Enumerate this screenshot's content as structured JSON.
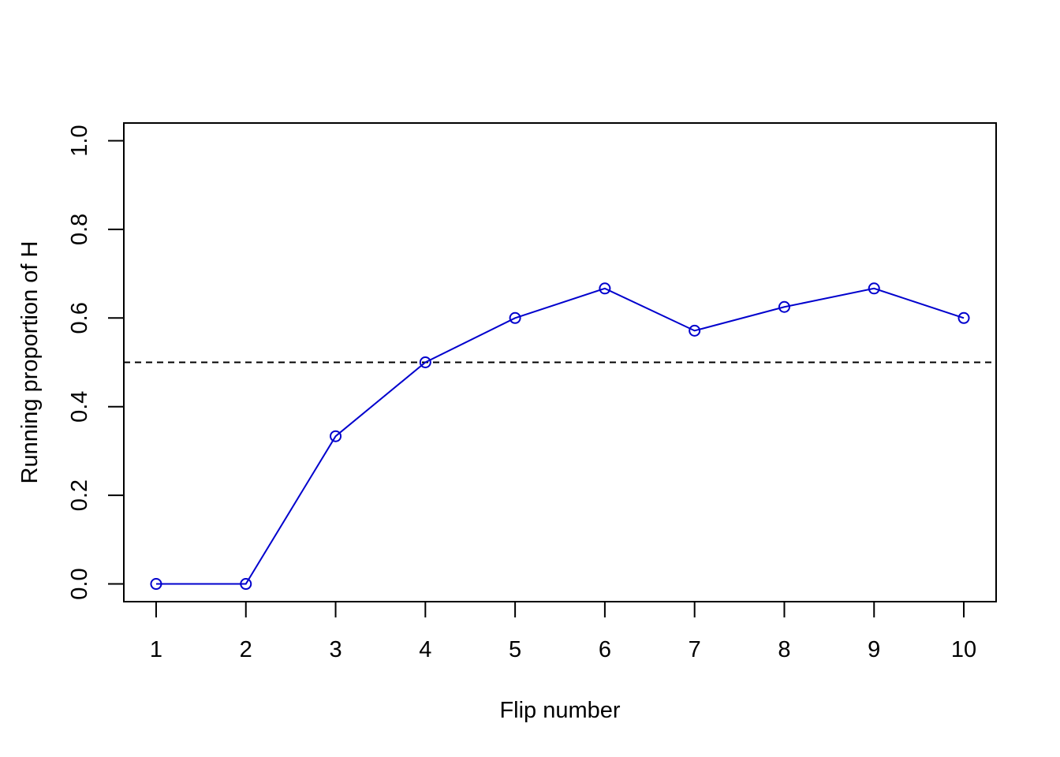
{
  "chart_data": {
    "type": "line",
    "title": "",
    "xlabel": "Flip number",
    "ylabel": "Running proportion of H",
    "x": [
      1,
      2,
      3,
      4,
      5,
      6,
      7,
      8,
      9,
      10
    ],
    "xticks": [
      "1",
      "2",
      "3",
      "4",
      "5",
      "6",
      "7",
      "8",
      "9",
      "10"
    ],
    "yticks": [
      "0.0",
      "0.2",
      "0.4",
      "0.6",
      "0.8",
      "1.0"
    ],
    "ytick_values": [
      0.0,
      0.2,
      0.4,
      0.6,
      0.8,
      1.0
    ],
    "xlim": [
      0.64,
      10.36
    ],
    "ylim": [
      -0.04,
      1.04
    ],
    "grid": false,
    "legend": "none",
    "series": [
      {
        "values": [
          0.0,
          0.0,
          0.3333,
          0.5,
          0.6,
          0.6667,
          0.5714,
          0.625,
          0.6667,
          0.6
        ],
        "color": "#0000CD",
        "marker": "open-circle",
        "line": "solid"
      }
    ],
    "reference_lines": [
      {
        "orientation": "horizontal",
        "y": 0.5,
        "style": "dashed",
        "color": "#000000"
      }
    ]
  }
}
